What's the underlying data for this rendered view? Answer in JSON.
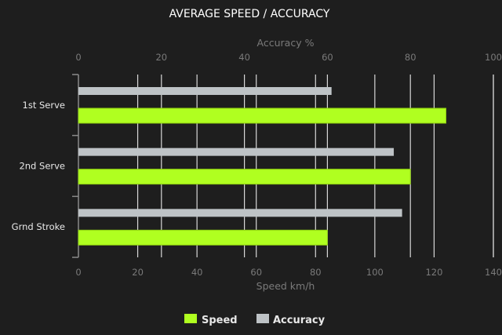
{
  "chart_data": {
    "type": "bar",
    "orientation": "horizontal",
    "title": "AVERAGE SPEED / ACCURACY",
    "categories": [
      "1st Serve",
      "2nd Serve",
      "Grnd Stroke"
    ],
    "series": [
      {
        "name": "Speed",
        "axis": "bottom",
        "color": "#b0ff20",
        "values": [
          124,
          112,
          84
        ]
      },
      {
        "name": "Accuracy",
        "axis": "top",
        "color": "#bec3c6",
        "values": [
          61,
          76,
          78
        ]
      }
    ],
    "x_bottom": {
      "label": "Speed km/h",
      "range": [
        0,
        140
      ],
      "ticks": [
        0,
        20,
        40,
        60,
        80,
        100,
        120,
        140
      ]
    },
    "x_top": {
      "label": "Accuracy %",
      "range": [
        0,
        100
      ],
      "ticks": [
        0,
        20,
        40,
        60,
        80,
        100
      ]
    },
    "grid": true,
    "legend": {
      "position": "bottom",
      "entries": [
        "Speed",
        "Accuracy"
      ]
    },
    "background": "#1e1e1e"
  }
}
